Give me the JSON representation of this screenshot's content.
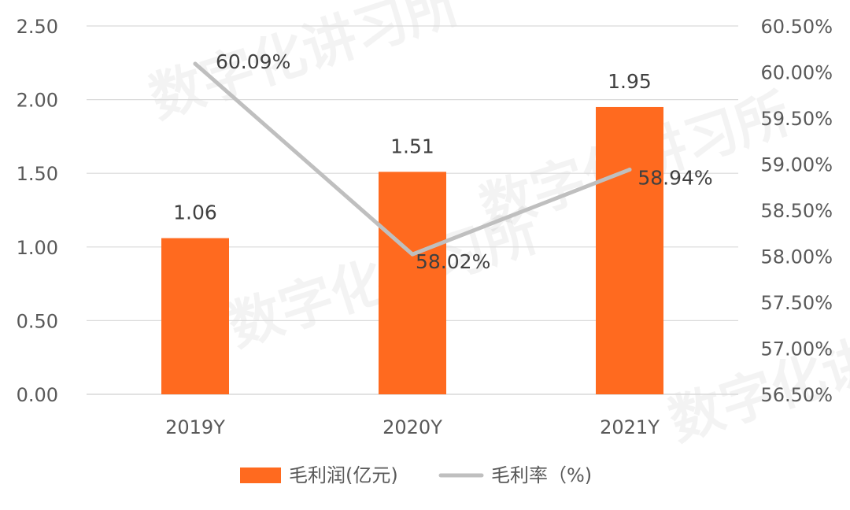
{
  "chart_data": {
    "type": "bar+line",
    "categories": [
      "2019Y",
      "2020Y",
      "2021Y"
    ],
    "series": [
      {
        "name": "毛利润(亿元)",
        "type": "bar",
        "axis": "left",
        "values": [
          1.06,
          1.51,
          1.95
        ],
        "labels": [
          "1.06",
          "1.51",
          "1.95"
        ],
        "color": "#FF6A1F"
      },
      {
        "name": "毛利率（%)",
        "type": "line",
        "axis": "right",
        "values": [
          60.09,
          58.02,
          58.94
        ],
        "labels": [
          "60.09%",
          "58.02%",
          "58.94%"
        ],
        "color": "#BFBFBF"
      }
    ],
    "y_left": {
      "ylim": [
        0,
        2.5
      ],
      "ticks": [
        "0.00",
        "0.50",
        "1.00",
        "1.50",
        "2.00",
        "2.50"
      ]
    },
    "y_right": {
      "ylim": [
        56.5,
        60.5
      ],
      "ticks": [
        "56.50%",
        "57.00%",
        "57.50%",
        "58.00%",
        "58.50%",
        "59.00%",
        "59.50%",
        "60.00%",
        "60.50%"
      ]
    },
    "grid": true,
    "legend_position": "bottom",
    "watermark": "数字化讲习所"
  }
}
